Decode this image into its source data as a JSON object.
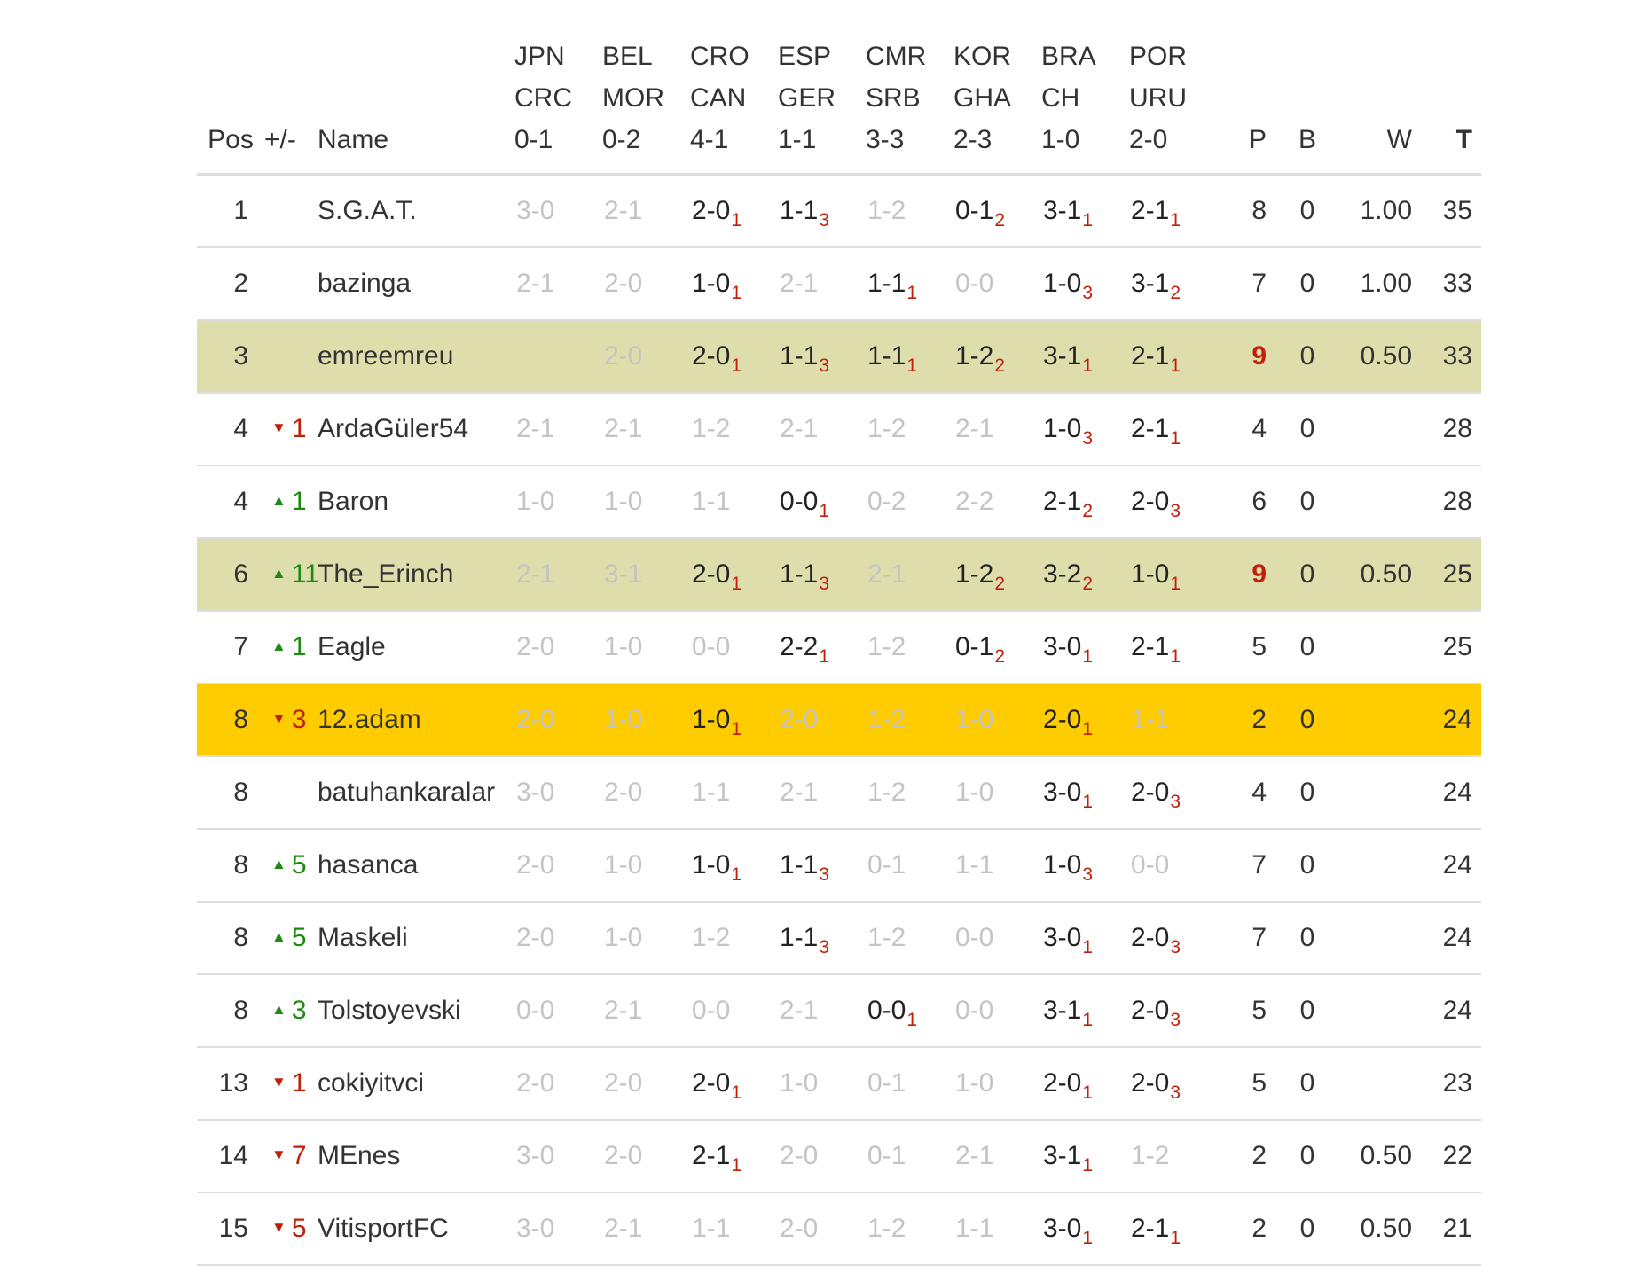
{
  "header": {
    "pos": "Pos",
    "change": "+/-",
    "name": "Name",
    "matches": [
      {
        "team1": "JPN",
        "team2": "CRC",
        "score": "0-1"
      },
      {
        "team1": "BEL",
        "team2": "MOR",
        "score": "0-2"
      },
      {
        "team1": "CRO",
        "team2": "CAN",
        "score": "4-1"
      },
      {
        "team1": "ESP",
        "team2": "GER",
        "score": "1-1"
      },
      {
        "team1": "CMR",
        "team2": "SRB",
        "score": "3-3"
      },
      {
        "team1": "KOR",
        "team2": "GHA",
        "score": "2-3"
      },
      {
        "team1": "BRA",
        "team2": "CH",
        "score": "1-0"
      },
      {
        "team1": "POR",
        "team2": "URU",
        "score": "2-0"
      }
    ],
    "p": "P",
    "b": "B",
    "w": "W",
    "t": "T"
  },
  "rows": [
    {
      "pos": "1",
      "dir": "",
      "change": "",
      "name": "S.G.A.T.",
      "style": "",
      "picks": [
        {
          "s": "3-0",
          "p": ""
        },
        {
          "s": "2-1",
          "p": ""
        },
        {
          "s": "2-0",
          "p": "1"
        },
        {
          "s": "1-1",
          "p": "3"
        },
        {
          "s": "1-2",
          "p": ""
        },
        {
          "s": "0-1",
          "p": "2"
        },
        {
          "s": "3-1",
          "p": "1"
        },
        {
          "s": "2-1",
          "p": "1"
        }
      ],
      "p": "8",
      "p_highlight": false,
      "b": "0",
      "w": "1.00",
      "t": "35"
    },
    {
      "pos": "2",
      "dir": "",
      "change": "",
      "name": "bazinga",
      "style": "",
      "picks": [
        {
          "s": "2-1",
          "p": ""
        },
        {
          "s": "2-0",
          "p": ""
        },
        {
          "s": "1-0",
          "p": "1"
        },
        {
          "s": "2-1",
          "p": ""
        },
        {
          "s": "1-1",
          "p": "1"
        },
        {
          "s": "0-0",
          "p": ""
        },
        {
          "s": "1-0",
          "p": "3"
        },
        {
          "s": "3-1",
          "p": "2"
        }
      ],
      "p": "7",
      "p_highlight": false,
      "b": "0",
      "w": "1.00",
      "t": "33"
    },
    {
      "pos": "3",
      "dir": "",
      "change": "",
      "name": "emreemreu",
      "style": "hl",
      "picks": [
        {
          "s": "",
          "p": ""
        },
        {
          "s": "2-0",
          "p": ""
        },
        {
          "s": "2-0",
          "p": "1"
        },
        {
          "s": "1-1",
          "p": "3"
        },
        {
          "s": "1-1",
          "p": "1"
        },
        {
          "s": "1-2",
          "p": "2"
        },
        {
          "s": "3-1",
          "p": "1"
        },
        {
          "s": "2-1",
          "p": "1"
        }
      ],
      "p": "9",
      "p_highlight": true,
      "b": "0",
      "w": "0.50",
      "t": "33"
    },
    {
      "pos": "4",
      "dir": "down",
      "change": "1",
      "name": "ArdaGüler54",
      "style": "",
      "picks": [
        {
          "s": "2-1",
          "p": ""
        },
        {
          "s": "2-1",
          "p": ""
        },
        {
          "s": "1-2",
          "p": ""
        },
        {
          "s": "2-1",
          "p": ""
        },
        {
          "s": "1-2",
          "p": ""
        },
        {
          "s": "2-1",
          "p": ""
        },
        {
          "s": "1-0",
          "p": "3"
        },
        {
          "s": "2-1",
          "p": "1"
        }
      ],
      "p": "4",
      "p_highlight": false,
      "b": "0",
      "w": "",
      "t": "28"
    },
    {
      "pos": "4",
      "dir": "up",
      "change": "1",
      "name": "Baron",
      "style": "",
      "picks": [
        {
          "s": "1-0",
          "p": ""
        },
        {
          "s": "1-0",
          "p": ""
        },
        {
          "s": "1-1",
          "p": ""
        },
        {
          "s": "0-0",
          "p": "1"
        },
        {
          "s": "0-2",
          "p": ""
        },
        {
          "s": "2-2",
          "p": ""
        },
        {
          "s": "2-1",
          "p": "2"
        },
        {
          "s": "2-0",
          "p": "3"
        }
      ],
      "p": "6",
      "p_highlight": false,
      "b": "0",
      "w": "",
      "t": "28"
    },
    {
      "pos": "6",
      "dir": "up",
      "change": "11",
      "name": "The_Erinch",
      "style": "hl",
      "picks": [
        {
          "s": "2-1",
          "p": ""
        },
        {
          "s": "3-1",
          "p": ""
        },
        {
          "s": "2-0",
          "p": "1"
        },
        {
          "s": "1-1",
          "p": "3"
        },
        {
          "s": "2-1",
          "p": ""
        },
        {
          "s": "1-2",
          "p": "2"
        },
        {
          "s": "3-2",
          "p": "2"
        },
        {
          "s": "1-0",
          "p": "1"
        }
      ],
      "p": "9",
      "p_highlight": true,
      "b": "0",
      "w": "0.50",
      "t": "25"
    },
    {
      "pos": "7",
      "dir": "up",
      "change": "1",
      "name": "Eagle",
      "style": "",
      "picks": [
        {
          "s": "2-0",
          "p": ""
        },
        {
          "s": "1-0",
          "p": ""
        },
        {
          "s": "0-0",
          "p": ""
        },
        {
          "s": "2-2",
          "p": "1"
        },
        {
          "s": "1-2",
          "p": ""
        },
        {
          "s": "0-1",
          "p": "2"
        },
        {
          "s": "3-0",
          "p": "1"
        },
        {
          "s": "2-1",
          "p": "1"
        }
      ],
      "p": "5",
      "p_highlight": false,
      "b": "0",
      "w": "",
      "t": "25"
    },
    {
      "pos": "8",
      "dir": "down",
      "change": "3",
      "name": "12.adam",
      "style": "me",
      "picks": [
        {
          "s": "2-0",
          "p": ""
        },
        {
          "s": "1-0",
          "p": ""
        },
        {
          "s": "1-0",
          "p": "1"
        },
        {
          "s": "2-0",
          "p": ""
        },
        {
          "s": "1-2",
          "p": ""
        },
        {
          "s": "1-0",
          "p": ""
        },
        {
          "s": "2-0",
          "p": "1"
        },
        {
          "s": "1-1",
          "p": ""
        }
      ],
      "p": "2",
      "p_highlight": false,
      "b": "0",
      "w": "",
      "t": "24"
    },
    {
      "pos": "8",
      "dir": "",
      "change": "",
      "name": "batuhankaralar",
      "style": "",
      "picks": [
        {
          "s": "3-0",
          "p": ""
        },
        {
          "s": "2-0",
          "p": ""
        },
        {
          "s": "1-1",
          "p": ""
        },
        {
          "s": "2-1",
          "p": ""
        },
        {
          "s": "1-2",
          "p": ""
        },
        {
          "s": "1-0",
          "p": ""
        },
        {
          "s": "3-0",
          "p": "1"
        },
        {
          "s": "2-0",
          "p": "3"
        }
      ],
      "p": "4",
      "p_highlight": false,
      "b": "0",
      "w": "",
      "t": "24"
    },
    {
      "pos": "8",
      "dir": "up",
      "change": "5",
      "name": "hasanca",
      "style": "",
      "picks": [
        {
          "s": "2-0",
          "p": ""
        },
        {
          "s": "1-0",
          "p": ""
        },
        {
          "s": "1-0",
          "p": "1"
        },
        {
          "s": "1-1",
          "p": "3"
        },
        {
          "s": "0-1",
          "p": ""
        },
        {
          "s": "1-1",
          "p": ""
        },
        {
          "s": "1-0",
          "p": "3"
        },
        {
          "s": "0-0",
          "p": ""
        }
      ],
      "p": "7",
      "p_highlight": false,
      "b": "0",
      "w": "",
      "t": "24"
    },
    {
      "pos": "8",
      "dir": "up",
      "change": "5",
      "name": "Maskeli",
      "style": "",
      "picks": [
        {
          "s": "2-0",
          "p": ""
        },
        {
          "s": "1-0",
          "p": ""
        },
        {
          "s": "1-2",
          "p": ""
        },
        {
          "s": "1-1",
          "p": "3"
        },
        {
          "s": "1-2",
          "p": ""
        },
        {
          "s": "0-0",
          "p": ""
        },
        {
          "s": "3-0",
          "p": "1"
        },
        {
          "s": "2-0",
          "p": "3"
        }
      ],
      "p": "7",
      "p_highlight": false,
      "b": "0",
      "w": "",
      "t": "24"
    },
    {
      "pos": "8",
      "dir": "up",
      "change": "3",
      "name": "Tolstoyevski",
      "style": "",
      "picks": [
        {
          "s": "0-0",
          "p": ""
        },
        {
          "s": "2-1",
          "p": ""
        },
        {
          "s": "0-0",
          "p": ""
        },
        {
          "s": "2-1",
          "p": ""
        },
        {
          "s": "0-0",
          "p": "1"
        },
        {
          "s": "0-0",
          "p": ""
        },
        {
          "s": "3-1",
          "p": "1"
        },
        {
          "s": "2-0",
          "p": "3"
        }
      ],
      "p": "5",
      "p_highlight": false,
      "b": "0",
      "w": "",
      "t": "24"
    },
    {
      "pos": "13",
      "dir": "down",
      "change": "1",
      "name": "cokiyitvci",
      "style": "",
      "picks": [
        {
          "s": "2-0",
          "p": ""
        },
        {
          "s": "2-0",
          "p": ""
        },
        {
          "s": "2-0",
          "p": "1"
        },
        {
          "s": "1-0",
          "p": ""
        },
        {
          "s": "0-1",
          "p": ""
        },
        {
          "s": "1-0",
          "p": ""
        },
        {
          "s": "2-0",
          "p": "1"
        },
        {
          "s": "2-0",
          "p": "3"
        }
      ],
      "p": "5",
      "p_highlight": false,
      "b": "0",
      "w": "",
      "t": "23"
    },
    {
      "pos": "14",
      "dir": "down",
      "change": "7",
      "name": "MEnes",
      "style": "",
      "picks": [
        {
          "s": "3-0",
          "p": ""
        },
        {
          "s": "2-0",
          "p": ""
        },
        {
          "s": "2-1",
          "p": "1"
        },
        {
          "s": "2-0",
          "p": ""
        },
        {
          "s": "0-1",
          "p": ""
        },
        {
          "s": "2-1",
          "p": ""
        },
        {
          "s": "3-1",
          "p": "1"
        },
        {
          "s": "1-2",
          "p": ""
        }
      ],
      "p": "2",
      "p_highlight": false,
      "b": "0",
      "w": "0.50",
      "t": "22"
    },
    {
      "pos": "15",
      "dir": "down",
      "change": "5",
      "name": "VitisportFC",
      "style": "",
      "picks": [
        {
          "s": "3-0",
          "p": ""
        },
        {
          "s": "2-1",
          "p": ""
        },
        {
          "s": "1-1",
          "p": ""
        },
        {
          "s": "2-0",
          "p": ""
        },
        {
          "s": "1-2",
          "p": ""
        },
        {
          "s": "1-1",
          "p": ""
        },
        {
          "s": "3-0",
          "p": "1"
        },
        {
          "s": "2-1",
          "p": "1"
        }
      ],
      "p": "2",
      "p_highlight": false,
      "b": "0",
      "w": "0.50",
      "t": "21"
    }
  ],
  "icons": {
    "up": "triangle-up-icon",
    "down": "triangle-down-icon"
  },
  "colors": {
    "highlight_row": "#dedead",
    "current_user_row": "#ffcc00",
    "up": "#1f8a12",
    "down": "#c0200a"
  }
}
